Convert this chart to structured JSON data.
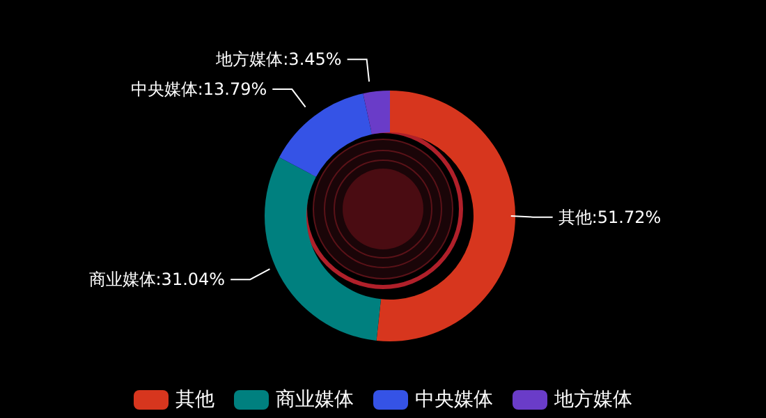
{
  "chart_data": {
    "type": "donut",
    "categories": [
      "其他",
      "商业媒体",
      "中央媒体",
      "地方媒体"
    ],
    "values": [
      51.72,
      31.04,
      13.79,
      3.45
    ],
    "colors": [
      "#d7361e",
      "#00807f",
      "#3553e6",
      "#6a3cc8"
    ],
    "value_labels": [
      "其他:51.72%",
      "商业媒体:31.04%",
      "中央媒体:13.79%",
      "地方媒体:3.45%"
    ],
    "legend": "bottom"
  }
}
